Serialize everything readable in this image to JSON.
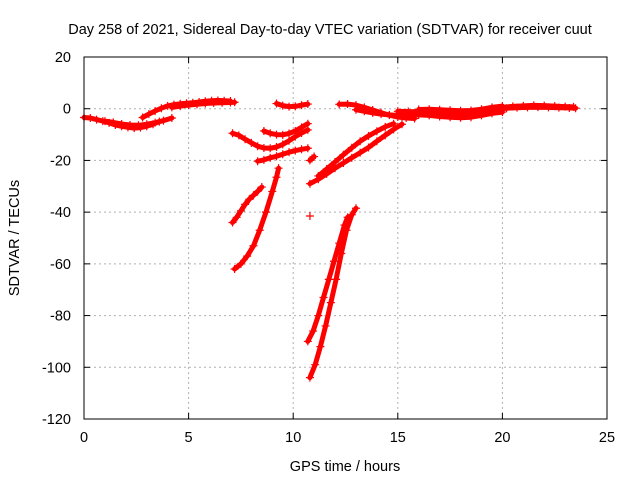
{
  "chart_data": {
    "type": "scatter",
    "title": "Day 258 of 2021, Sidereal Day-to-day VTEC variation (SDTVAR) for receiver cuut",
    "xlabel": "GPS time / hours",
    "ylabel": "SDTVAR / TECUs",
    "xlim": [
      0,
      25
    ],
    "ylim": [
      -120,
      20
    ],
    "x_ticks": [
      0,
      5,
      10,
      15,
      20,
      25
    ],
    "y_ticks": [
      20,
      0,
      -20,
      -40,
      -60,
      -80,
      -100,
      -120
    ],
    "grid": true,
    "marker": "+",
    "colors": {
      "series": "#ff0000",
      "grid": "#b0b0b0",
      "axis": "#000000"
    },
    "series": [
      {
        "values": [
          [
            0.0,
            -3.4
          ],
          [
            0.3,
            -3.6
          ],
          [
            0.6,
            -4.2
          ],
          [
            0.9,
            -4.8
          ],
          [
            1.2,
            -5.5
          ],
          [
            1.5,
            -6.3
          ],
          [
            1.8,
            -6.8
          ],
          [
            2.1,
            -7.2
          ],
          [
            2.4,
            -7.5
          ],
          [
            2.7,
            -7.3
          ],
          [
            3.0,
            -6.8
          ],
          [
            3.3,
            -6.0
          ],
          [
            3.6,
            -5.0
          ]
        ]
      },
      {
        "values": [
          [
            1.0,
            -4.8
          ],
          [
            1.4,
            -5.3
          ],
          [
            1.8,
            -5.9
          ],
          [
            2.2,
            -6.3
          ],
          [
            2.6,
            -6.4
          ],
          [
            3.0,
            -6.0
          ],
          [
            3.4,
            -5.4
          ],
          [
            3.8,
            -4.6
          ],
          [
            4.2,
            -3.6
          ]
        ]
      },
      {
        "values": [
          [
            2.8,
            -3.4
          ],
          [
            3.1,
            -2.1
          ],
          [
            3.4,
            -0.9
          ],
          [
            3.7,
            0.2
          ],
          [
            4.0,
            1.1
          ],
          [
            4.3,
            1.6
          ],
          [
            4.6,
            1.9
          ],
          [
            4.9,
            2.1
          ],
          [
            5.2,
            2.3
          ],
          [
            5.5,
            2.6
          ],
          [
            5.8,
            2.9
          ],
          [
            6.1,
            3.1
          ],
          [
            6.4,
            3.2
          ],
          [
            6.7,
            3.1
          ],
          [
            7.0,
            3.0
          ]
        ]
      },
      {
        "values": [
          [
            4.2,
            0.5
          ],
          [
            4.6,
            1.0
          ],
          [
            5.0,
            1.4
          ],
          [
            5.4,
            1.7
          ],
          [
            5.8,
            2.0
          ],
          [
            6.2,
            2.2
          ],
          [
            6.6,
            2.3
          ],
          [
            7.0,
            2.4
          ],
          [
            7.2,
            2.5
          ]
        ]
      },
      {
        "values": [
          [
            7.1,
            -9.5
          ],
          [
            7.4,
            -10.3
          ],
          [
            7.7,
            -11.8
          ],
          [
            8.0,
            -13.2
          ],
          [
            8.3,
            -14.5
          ],
          [
            8.6,
            -15.2
          ],
          [
            8.9,
            -15.3
          ],
          [
            9.2,
            -14.8
          ],
          [
            9.5,
            -13.8
          ],
          [
            9.8,
            -12.4
          ],
          [
            10.1,
            -10.8
          ],
          [
            10.4,
            -9.4
          ],
          [
            10.7,
            -8.2
          ]
        ]
      },
      {
        "values": [
          [
            8.6,
            -8.6
          ],
          [
            8.9,
            -9.5
          ],
          [
            9.2,
            -10.0
          ],
          [
            9.5,
            -10.1
          ],
          [
            9.8,
            -9.6
          ],
          [
            10.1,
            -8.6
          ],
          [
            10.4,
            -7.2
          ],
          [
            10.7,
            -5.8
          ]
        ]
      },
      {
        "values": [
          [
            8.3,
            -20.3
          ],
          [
            8.6,
            -19.8
          ],
          [
            8.9,
            -19.0
          ],
          [
            9.2,
            -18.4
          ],
          [
            9.5,
            -17.6
          ],
          [
            9.8,
            -16.8
          ],
          [
            10.1,
            -16.2
          ],
          [
            10.4,
            -15.7
          ],
          [
            10.7,
            -15.3
          ]
        ]
      },
      {
        "values": [
          [
            9.2,
            2.0
          ],
          [
            9.5,
            1.2
          ],
          [
            9.8,
            0.8
          ],
          [
            10.1,
            0.9
          ],
          [
            10.4,
            1.4
          ],
          [
            10.7,
            1.8
          ]
        ]
      },
      {
        "values": [
          [
            7.1,
            -44.0
          ],
          [
            7.3,
            -42.0
          ],
          [
            7.5,
            -39.5
          ],
          [
            7.7,
            -37.0
          ],
          [
            7.9,
            -35.0
          ],
          [
            8.1,
            -33.5
          ],
          [
            8.3,
            -32.0
          ],
          [
            8.5,
            -30.3
          ]
        ]
      },
      {
        "values": [
          [
            7.2,
            -62.0
          ],
          [
            7.5,
            -60.0
          ],
          [
            7.8,
            -57.0
          ],
          [
            8.1,
            -53.0
          ],
          [
            8.4,
            -47.0
          ],
          [
            8.7,
            -40.0
          ],
          [
            9.0,
            -32.0
          ],
          [
            9.2,
            -26.5
          ],
          [
            9.3,
            -23.0
          ]
        ]
      },
      {
        "values": [
          [
            10.8,
            -20.0
          ],
          [
            10.9,
            -19.2
          ],
          [
            11.0,
            -18.5
          ]
        ]
      },
      {
        "values": [
          [
            10.8,
            -41.5
          ]
        ]
      },
      {
        "values": [
          [
            10.7,
            -90.0
          ],
          [
            10.95,
            -86.0
          ],
          [
            11.2,
            -80.0
          ],
          [
            11.45,
            -73.0
          ],
          [
            11.7,
            -66.0
          ],
          [
            11.95,
            -59.0
          ],
          [
            12.2,
            -52.0
          ],
          [
            12.45,
            -45.0
          ],
          [
            12.6,
            -42.0
          ]
        ]
      },
      {
        "values": [
          [
            10.8,
            -104.0
          ],
          [
            11.05,
            -99.0
          ],
          [
            11.3,
            -92.0
          ],
          [
            11.55,
            -84.0
          ],
          [
            11.8,
            -75.0
          ],
          [
            12.05,
            -66.0
          ],
          [
            12.3,
            -56.0
          ],
          [
            12.55,
            -47.0
          ],
          [
            12.8,
            -41.0
          ],
          [
            13.0,
            -38.5
          ]
        ]
      },
      {
        "values": [
          [
            10.8,
            -29.0
          ],
          [
            11.2,
            -27.3
          ],
          [
            11.6,
            -25.2
          ],
          [
            12.0,
            -23.0
          ],
          [
            12.4,
            -21.0
          ],
          [
            12.8,
            -19.0
          ],
          [
            13.2,
            -17.0
          ],
          [
            13.6,
            -15.0
          ],
          [
            14.0,
            -12.6
          ],
          [
            14.4,
            -10.3
          ],
          [
            14.8,
            -8.0
          ],
          [
            15.2,
            -6.0
          ]
        ]
      },
      {
        "values": [
          [
            11.2,
            -26.0
          ],
          [
            11.6,
            -23.3
          ],
          [
            12.0,
            -20.6
          ],
          [
            12.4,
            -17.8
          ],
          [
            12.8,
            -15.1
          ],
          [
            13.2,
            -12.6
          ],
          [
            13.6,
            -10.5
          ],
          [
            14.0,
            -8.7
          ],
          [
            14.4,
            -7.0
          ],
          [
            14.8,
            -5.8
          ]
        ]
      },
      {
        "values": [
          [
            12.2,
            1.7
          ],
          [
            12.6,
            1.8
          ],
          [
            13.0,
            1.4
          ],
          [
            13.4,
            0.5
          ],
          [
            13.8,
            -0.5
          ],
          [
            14.2,
            -1.5
          ],
          [
            14.6,
            -2.5
          ],
          [
            15.0,
            -3.2
          ],
          [
            15.4,
            -3.6
          ],
          [
            15.8,
            -3.8
          ]
        ]
      },
      {
        "values": [
          [
            13.0,
            -0.4
          ],
          [
            13.4,
            -1.0
          ],
          [
            13.8,
            -1.6
          ],
          [
            14.2,
            -2.1
          ],
          [
            14.6,
            -2.4
          ],
          [
            15.0,
            -2.6
          ],
          [
            15.4,
            -2.8
          ]
        ]
      },
      {
        "values": [
          [
            15.0,
            -1.0
          ],
          [
            15.5,
            -1.1
          ],
          [
            16.0,
            -1.2
          ],
          [
            16.5,
            -1.4
          ],
          [
            17.0,
            -1.7
          ],
          [
            17.5,
            -2.0
          ],
          [
            18.0,
            -2.1
          ],
          [
            18.5,
            -2.0
          ],
          [
            19.0,
            -1.7
          ],
          [
            19.5,
            -1.2
          ],
          [
            20.0,
            -0.6
          ]
        ]
      },
      {
        "values": [
          [
            15.2,
            -3.0
          ],
          [
            15.6,
            -2.6
          ],
          [
            16.0,
            -2.4
          ],
          [
            16.5,
            -2.6
          ],
          [
            17.0,
            -3.0
          ],
          [
            17.5,
            -3.3
          ],
          [
            18.0,
            -3.5
          ],
          [
            18.5,
            -3.3
          ],
          [
            19.0,
            -2.6
          ],
          [
            19.5,
            -1.8
          ],
          [
            20.0,
            -1.3
          ]
        ]
      },
      {
        "values": [
          [
            16.0,
            -0.3
          ],
          [
            16.5,
            -0.2
          ],
          [
            17.0,
            -0.4
          ],
          [
            17.5,
            -0.6
          ],
          [
            18.0,
            -0.8
          ],
          [
            18.5,
            -0.7
          ],
          [
            19.0,
            -0.2
          ],
          [
            19.5,
            0.5
          ],
          [
            20.0,
            1.0
          ]
        ]
      },
      {
        "values": [
          [
            20.0,
            0.6
          ],
          [
            20.5,
            0.9
          ],
          [
            21.0,
            1.1
          ],
          [
            21.5,
            1.3
          ],
          [
            22.0,
            1.2
          ],
          [
            22.5,
            1.0
          ],
          [
            23.0,
            0.8
          ],
          [
            23.4,
            0.7
          ]
        ]
      },
      {
        "values": [
          [
            20.2,
            0.2
          ],
          [
            20.7,
            0.4
          ],
          [
            21.2,
            0.5
          ],
          [
            21.7,
            0.6
          ],
          [
            22.2,
            0.5
          ],
          [
            22.7,
            0.4
          ],
          [
            23.2,
            0.3
          ],
          [
            23.5,
            0.2
          ]
        ]
      }
    ]
  }
}
